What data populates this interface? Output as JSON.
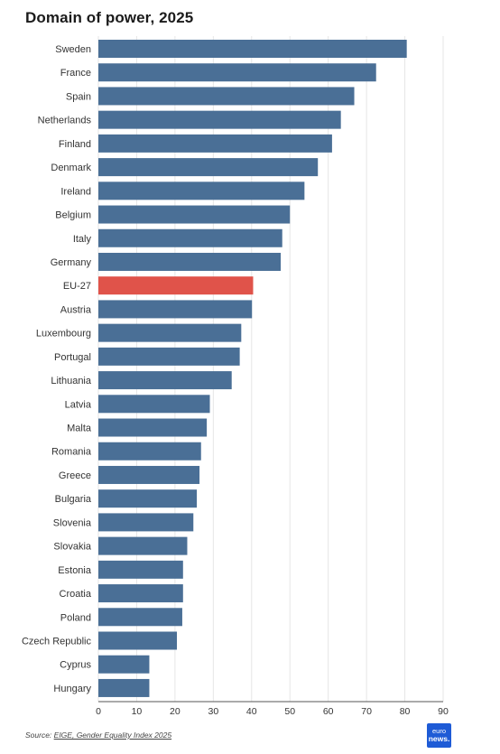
{
  "title": "Domain of power, 2025",
  "source": {
    "prefix": "Source: ",
    "link": "EIGE, Gender Equality Index 2025"
  },
  "logo": {
    "line1": "euro",
    "line2": "news."
  },
  "colors": {
    "bar": "#4a6f96",
    "highlight": "#e0534a",
    "grid": "#e6e6e6"
  },
  "chart_data": {
    "type": "bar",
    "orientation": "horizontal",
    "title": "Domain of power, 2025",
    "xlim": [
      0,
      90
    ],
    "xticks": [
      0,
      10,
      20,
      30,
      40,
      50,
      60,
      70,
      80,
      90
    ],
    "grid": true,
    "highlight": "EU-27",
    "categories": [
      "Sweden",
      "France",
      "Spain",
      "Netherlands",
      "Finland",
      "Denmark",
      "Ireland",
      "Belgium",
      "Italy",
      "Germany",
      "EU-27",
      "Austria",
      "Luxembourg",
      "Portugal",
      "Lithuania",
      "Latvia",
      "Malta",
      "Romania",
      "Greece",
      "Bulgaria",
      "Slovenia",
      "Slovakia",
      "Estonia",
      "Croatia",
      "Poland",
      "Czech Republic",
      "Cyprus",
      "Hungary"
    ],
    "values": [
      80.5,
      72.5,
      66.8,
      63.3,
      61.0,
      57.3,
      53.8,
      50.0,
      48.0,
      47.6,
      40.4,
      40.1,
      37.3,
      36.9,
      34.8,
      29.1,
      28.3,
      26.8,
      26.4,
      25.7,
      24.8,
      23.2,
      22.1,
      22.1,
      21.9,
      20.5,
      13.3,
      13.3
    ]
  }
}
